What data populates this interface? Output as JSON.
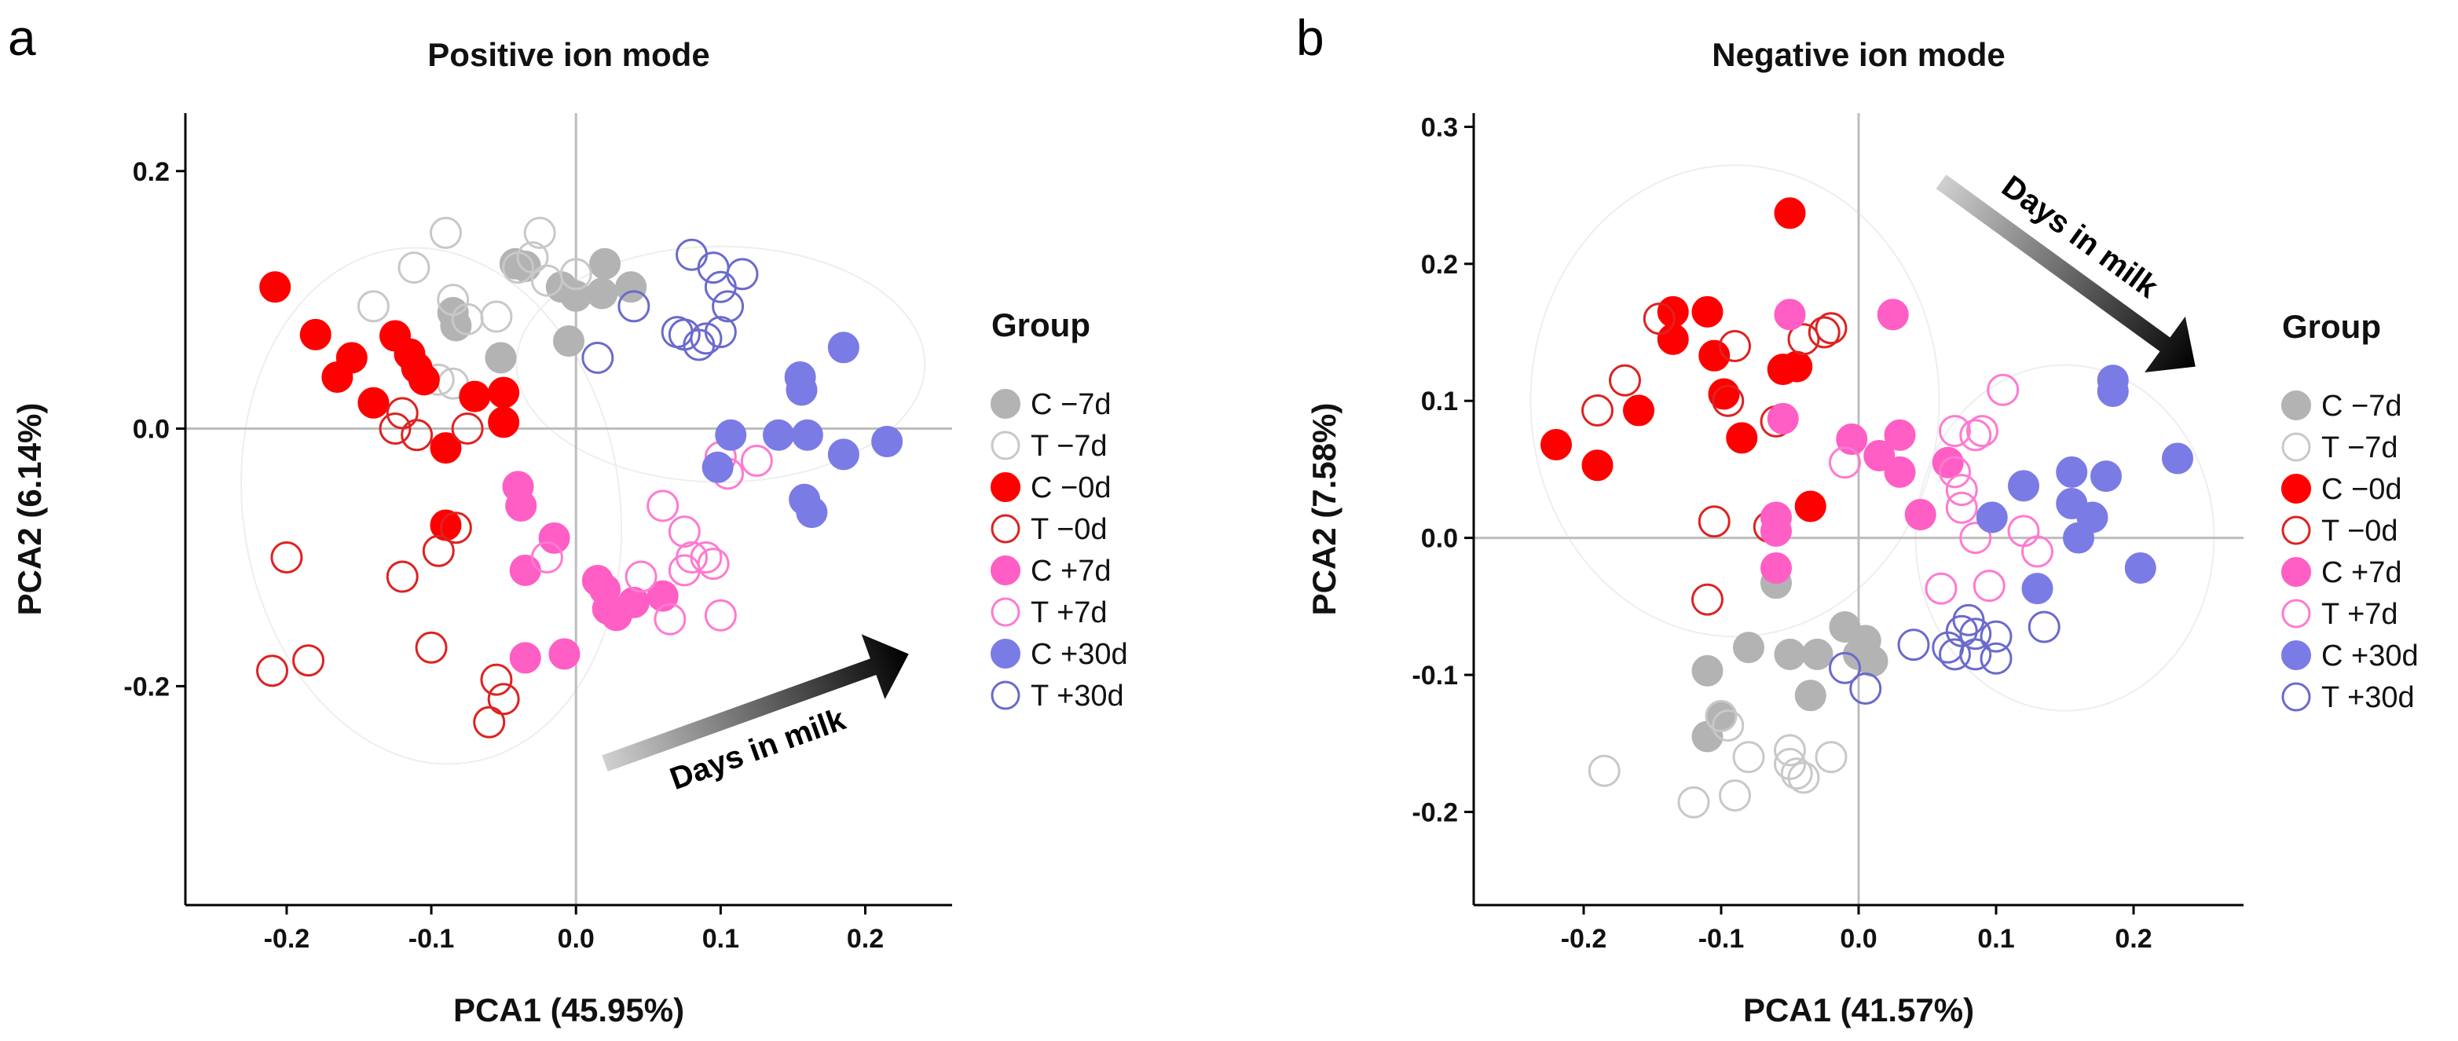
{
  "chart_data": [
    {
      "type": "scatter",
      "panel_label": "a",
      "title": "Positive ion mode",
      "xlabel": "PCA1 (45.95%)",
      "ylabel": "PCA2 (6.14%)",
      "xlim": [
        -0.27,
        0.26
      ],
      "ylim": [
        -0.37,
        0.245
      ],
      "xticks": [
        -0.2,
        -0.1,
        0.0,
        0.1,
        0.2
      ],
      "xtick_labels": [
        "-0.2",
        "-0.1",
        "0.0",
        "0.1",
        "0.2"
      ],
      "yticks": [
        -0.2,
        0.0,
        0.2
      ],
      "ytick_labels": [
        "-0.2",
        "0.0",
        "0.2"
      ],
      "annotation": {
        "text": "Days in milk",
        "from": [
          0.02,
          -0.26
        ],
        "to": [
          0.23,
          -0.175
        ]
      },
      "legend": {
        "title": "Group",
        "entries": [
          "C −7d",
          "T −7d",
          "C −0d",
          "T −0d",
          "C +7d",
          "T +7d",
          "C +30d",
          "T +30d"
        ]
      },
      "series": [
        {
          "name": "C −7d",
          "color": "#b3b3b3",
          "filled": true,
          "points": [
            [
              -0.085,
              0.09
            ],
            [
              -0.083,
              0.08
            ],
            [
              -0.042,
              0.128
            ],
            [
              -0.035,
              0.126
            ],
            [
              -0.01,
              0.11
            ],
            [
              0.0,
              0.103
            ],
            [
              0.02,
              0.128
            ],
            [
              0.018,
              0.105
            ],
            [
              0.038,
              0.11
            ],
            [
              -0.005,
              0.068
            ],
            [
              -0.052,
              0.055
            ]
          ]
        },
        {
          "name": "T −7d",
          "color": "#c8c8c8",
          "filled": false,
          "points": [
            [
              -0.09,
              0.152
            ],
            [
              -0.112,
              0.125
            ],
            [
              -0.14,
              0.095
            ],
            [
              -0.085,
              0.1
            ],
            [
              -0.075,
              0.085
            ],
            [
              -0.025,
              0.152
            ],
            [
              -0.03,
              0.133
            ],
            [
              -0.04,
              0.125
            ],
            [
              -0.055,
              0.087
            ],
            [
              -0.02,
              0.115
            ],
            [
              0.0,
              0.12
            ],
            [
              -0.095,
              0.038
            ],
            [
              -0.085,
              0.035
            ]
          ]
        },
        {
          "name": "C −0d",
          "color": "#ff0000",
          "filled": true,
          "points": [
            [
              -0.208,
              0.11
            ],
            [
              -0.18,
              0.073
            ],
            [
              -0.165,
              0.04
            ],
            [
              -0.155,
              0.055
            ],
            [
              -0.125,
              0.072
            ],
            [
              -0.115,
              0.058
            ],
            [
              -0.11,
              0.047
            ],
            [
              -0.105,
              0.038
            ],
            [
              -0.14,
              0.02
            ],
            [
              -0.05,
              0.028
            ],
            [
              -0.05,
              0.005
            ],
            [
              -0.09,
              -0.015
            ],
            [
              -0.07,
              0.025
            ],
            [
              -0.09,
              -0.075
            ]
          ]
        },
        {
          "name": "T −0d",
          "color": "#dd2222",
          "filled": false,
          "points": [
            [
              -0.2,
              -0.1
            ],
            [
              -0.12,
              -0.115
            ],
            [
              -0.125,
              0.0
            ],
            [
              -0.12,
              0.012
            ],
            [
              -0.11,
              -0.005
            ],
            [
              -0.095,
              -0.095
            ],
            [
              -0.083,
              -0.077
            ],
            [
              -0.075,
              0.0
            ],
            [
              -0.21,
              -0.188
            ],
            [
              -0.185,
              -0.18
            ],
            [
              -0.1,
              -0.17
            ],
            [
              -0.06,
              -0.228
            ],
            [
              -0.055,
              -0.195
            ],
            [
              -0.05,
              -0.21
            ]
          ]
        },
        {
          "name": "C +7d",
          "color": "#ff5ec4",
          "filled": true,
          "points": [
            [
              -0.04,
              -0.045
            ],
            [
              -0.038,
              -0.06
            ],
            [
              -0.015,
              -0.085
            ],
            [
              -0.035,
              -0.11
            ],
            [
              -0.035,
              -0.178
            ],
            [
              -0.008,
              -0.175
            ],
            [
              0.015,
              -0.118
            ],
            [
              0.02,
              -0.125
            ],
            [
              0.022,
              -0.14
            ],
            [
              0.028,
              -0.145
            ],
            [
              0.04,
              -0.135
            ],
            [
              0.06,
              -0.13
            ]
          ]
        },
        {
          "name": "T +7d",
          "color": "#ff7ad0",
          "filled": false,
          "points": [
            [
              0.06,
              -0.06
            ],
            [
              0.075,
              -0.08
            ],
            [
              0.08,
              -0.1
            ],
            [
              0.075,
              -0.11
            ],
            [
              0.09,
              -0.1
            ],
            [
              0.095,
              -0.105
            ],
            [
              0.1,
              -0.145
            ],
            [
              0.065,
              -0.148
            ],
            [
              -0.02,
              -0.1
            ],
            [
              0.105,
              -0.035
            ],
            [
              0.125,
              -0.025
            ],
            [
              0.1,
              -0.022
            ],
            [
              0.045,
              -0.115
            ]
          ]
        },
        {
          "name": "C +30d",
          "color": "#7b7be6",
          "filled": true,
          "points": [
            [
              0.107,
              -0.005
            ],
            [
              0.14,
              -0.005
            ],
            [
              0.098,
              -0.03
            ],
            [
              0.155,
              0.04
            ],
            [
              0.156,
              0.03
            ],
            [
              0.185,
              0.063
            ],
            [
              0.16,
              -0.005
            ],
            [
              0.158,
              -0.055
            ],
            [
              0.163,
              -0.065
            ],
            [
              0.185,
              -0.02
            ],
            [
              0.215,
              -0.01
            ]
          ]
        },
        {
          "name": "T +30d",
          "color": "#6a6acd",
          "filled": false,
          "points": [
            [
              0.08,
              0.135
            ],
            [
              0.095,
              0.125
            ],
            [
              0.1,
              0.11
            ],
            [
              0.115,
              0.12
            ],
            [
              0.105,
              0.095
            ],
            [
              0.07,
              0.075
            ],
            [
              0.075,
              0.073
            ],
            [
              0.09,
              0.07
            ],
            [
              0.085,
              0.065
            ],
            [
              0.1,
              0.075
            ],
            [
              0.04,
              0.095
            ],
            [
              0.015,
              0.055
            ]
          ]
        }
      ]
    },
    {
      "type": "scatter",
      "panel_label": "b",
      "title": "Negative ion mode",
      "xlabel": "PCA1 (41.57%)",
      "ylabel": "PCA2 (7.58%)",
      "xlim": [
        -0.28,
        0.28
      ],
      "ylim": [
        -0.268,
        0.31
      ],
      "xticks": [
        -0.2,
        -0.1,
        0.0,
        0.1,
        0.2
      ],
      "xtick_labels": [
        "-0.2",
        "-0.1",
        "0.0",
        "0.1",
        "0.2"
      ],
      "yticks": [
        -0.2,
        -0.1,
        0.0,
        0.1,
        0.2,
        0.3
      ],
      "ytick_labels": [
        "-0.2",
        "-0.1",
        "0.0",
        "0.1",
        "0.2",
        "0.3"
      ],
      "annotation": {
        "text": "Days in milk",
        "from": [
          0.06,
          0.26
        ],
        "to": [
          0.245,
          0.125
        ]
      },
      "legend": {
        "title": "Group",
        "entries": [
          "C −7d",
          "T −7d",
          "C −0d",
          "T −0d",
          "C +7d",
          "T +7d",
          "C +30d",
          "T +30d"
        ]
      },
      "series": [
        {
          "name": "C −7d",
          "color": "#b3b3b3",
          "filled": true,
          "points": [
            [
              -0.06,
              -0.033
            ],
            [
              -0.08,
              -0.08
            ],
            [
              -0.05,
              -0.085
            ],
            [
              -0.01,
              -0.065
            ],
            [
              -0.03,
              -0.085
            ],
            [
              0.0,
              -0.085
            ],
            [
              0.005,
              -0.075
            ],
            [
              0.01,
              -0.09
            ],
            [
              -0.035,
              -0.115
            ],
            [
              -0.11,
              -0.097
            ],
            [
              -0.11,
              -0.145
            ],
            [
              -0.1,
              -0.13
            ]
          ]
        },
        {
          "name": "T −7d",
          "color": "#c8c8c8",
          "filled": false,
          "points": [
            [
              -0.185,
              -0.17
            ],
            [
              -0.12,
              -0.193
            ],
            [
              -0.1,
              -0.13
            ],
            [
              -0.095,
              -0.137
            ],
            [
              -0.08,
              -0.16
            ],
            [
              -0.09,
              -0.188
            ],
            [
              -0.05,
              -0.155
            ],
            [
              -0.05,
              -0.165
            ],
            [
              -0.045,
              -0.172
            ],
            [
              -0.04,
              -0.175
            ],
            [
              -0.02,
              -0.16
            ]
          ]
        },
        {
          "name": "C −0d",
          "color": "#ff0000",
          "filled": true,
          "points": [
            [
              -0.05,
              0.237
            ],
            [
              -0.135,
              0.165
            ],
            [
              -0.11,
              0.165
            ],
            [
              -0.135,
              0.145
            ],
            [
              -0.105,
              0.133
            ],
            [
              -0.055,
              0.123
            ],
            [
              -0.045,
              0.125
            ],
            [
              -0.098,
              0.105
            ],
            [
              -0.16,
              0.093
            ],
            [
              -0.085,
              0.073
            ],
            [
              -0.22,
              0.068
            ],
            [
              -0.19,
              0.053
            ],
            [
              -0.035,
              0.023
            ]
          ]
        },
        {
          "name": "T −0d",
          "color": "#dd2222",
          "filled": false,
          "points": [
            [
              -0.145,
              0.16
            ],
            [
              -0.09,
              0.14
            ],
            [
              -0.04,
              0.145
            ],
            [
              -0.025,
              0.15
            ],
            [
              -0.02,
              0.153
            ],
            [
              -0.17,
              0.115
            ],
            [
              -0.095,
              0.1
            ],
            [
              -0.19,
              0.093
            ],
            [
              -0.06,
              0.085
            ],
            [
              -0.105,
              0.012
            ],
            [
              -0.065,
              0.008
            ],
            [
              -0.11,
              -0.045
            ]
          ]
        },
        {
          "name": "C +7d",
          "color": "#ff5ec4",
          "filled": true,
          "points": [
            [
              -0.05,
              0.163
            ],
            [
              0.025,
              0.163
            ],
            [
              -0.055,
              0.087
            ],
            [
              -0.005,
              0.072
            ],
            [
              0.03,
              0.075
            ],
            [
              0.015,
              0.06
            ],
            [
              0.03,
              0.048
            ],
            [
              0.065,
              0.055
            ],
            [
              0.045,
              0.017
            ],
            [
              -0.06,
              0.015
            ],
            [
              -0.06,
              0.005
            ],
            [
              -0.06,
              -0.022
            ]
          ]
        },
        {
          "name": "T +7d",
          "color": "#ff7ad0",
          "filled": false,
          "points": [
            [
              0.105,
              0.108
            ],
            [
              0.07,
              0.078
            ],
            [
              0.085,
              0.075
            ],
            [
              0.09,
              0.078
            ],
            [
              -0.01,
              0.055
            ],
            [
              0.07,
              0.048
            ],
            [
              0.075,
              0.035
            ],
            [
              0.075,
              0.022
            ],
            [
              0.085,
              0.0
            ],
            [
              0.12,
              0.005
            ],
            [
              0.13,
              -0.01
            ],
            [
              0.06,
              -0.037
            ],
            [
              0.095,
              -0.035
            ]
          ]
        },
        {
          "name": "C +30d",
          "color": "#7b7be6",
          "filled": true,
          "points": [
            [
              0.185,
              0.115
            ],
            [
              0.185,
              0.107
            ],
            [
              0.232,
              0.058
            ],
            [
              0.155,
              0.048
            ],
            [
              0.18,
              0.045
            ],
            [
              0.12,
              0.038
            ],
            [
              0.097,
              0.015
            ],
            [
              0.155,
              0.025
            ],
            [
              0.17,
              0.015
            ],
            [
              0.16,
              0.0
            ],
            [
              0.205,
              -0.022
            ],
            [
              0.13,
              -0.037
            ]
          ]
        },
        {
          "name": "T +30d",
          "color": "#6a6acd",
          "filled": false,
          "points": [
            [
              0.04,
              -0.078
            ],
            [
              0.065,
              -0.08
            ],
            [
              0.075,
              -0.068
            ],
            [
              0.08,
              -0.06
            ],
            [
              0.085,
              -0.07
            ],
            [
              0.07,
              -0.085
            ],
            [
              0.085,
              -0.085
            ],
            [
              0.1,
              -0.072
            ],
            [
              0.1,
              -0.088
            ],
            [
              0.135,
              -0.065
            ],
            [
              -0.01,
              -0.095
            ],
            [
              0.005,
              -0.11
            ]
          ]
        }
      ]
    }
  ]
}
